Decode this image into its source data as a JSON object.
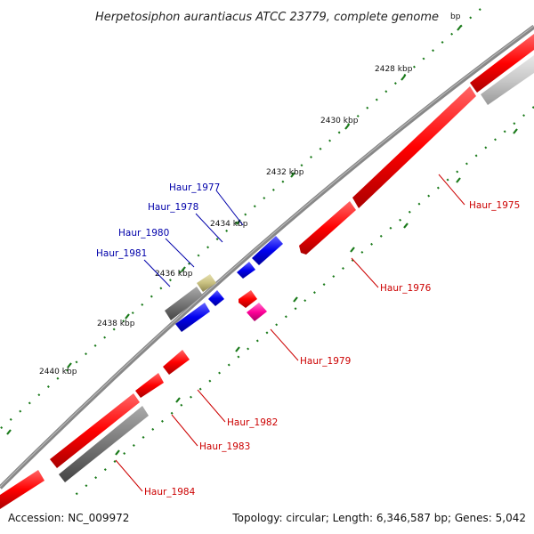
{
  "title": "Herpetosiphon aurantiacus ATCC 23779, complete genome",
  "footer": {
    "accession": "Accession: NC_009972",
    "summary": "Topology: circular; Length: 6,346,587 bp; Genes: 5,042"
  },
  "ticks": [
    "2428 kbp",
    "2430 kbp",
    "2432 kbp",
    "2434 kbp",
    "2436 kbp",
    "2438 kbp",
    "2440 kbp"
  ],
  "partial_tick": "bp",
  "genes_right": [
    "Haur_1975",
    "Haur_1976",
    "Haur_1979",
    "Haur_1982",
    "Haur_1983",
    "Haur_1984"
  ],
  "genes_left": [
    "Haur_1977",
    "Haur_1978",
    "Haur_1980",
    "Haur_1981"
  ],
  "colors": {
    "backbone": "#888888",
    "cds": "#ff0000",
    "hypothetical": "#777777",
    "light": "#c8c8c8",
    "blue": "#0000ee",
    "khaki": "#c8c080",
    "magenta": "#ff0099",
    "ticks": "#1a7a1a"
  }
}
